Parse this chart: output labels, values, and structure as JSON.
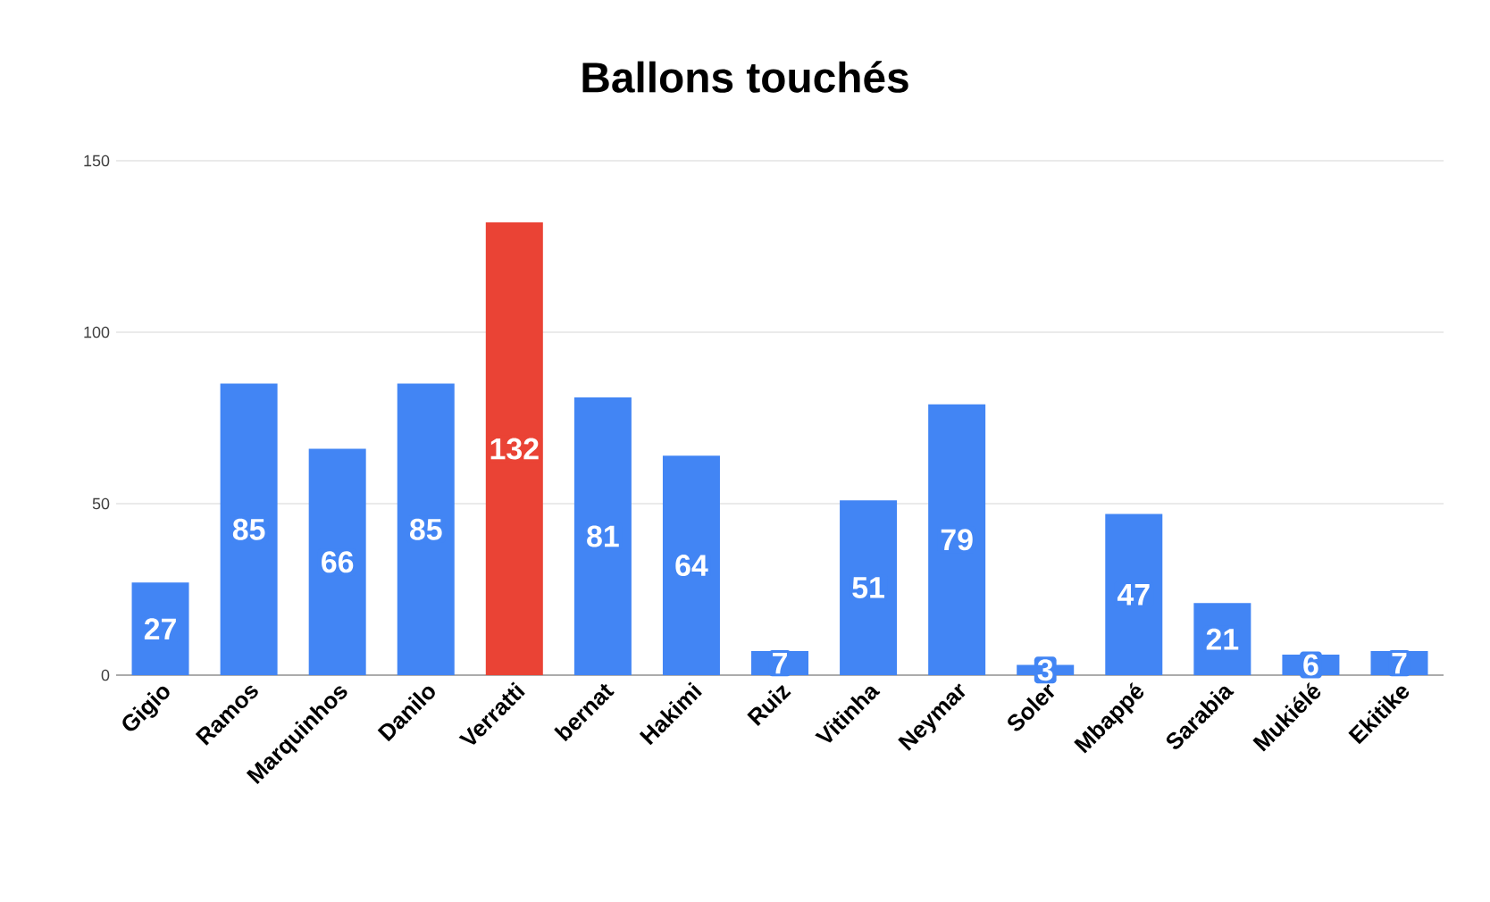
{
  "chart_data": {
    "type": "bar",
    "title": "Ballons touchés",
    "categories": [
      "Gigio",
      "Ramos",
      "Marquinhos",
      "Danilo",
      "Verratti",
      "bernat",
      "Hakimi",
      "Ruiz",
      "Vitinha",
      "Neymar",
      "Soler",
      "Mbappé",
      "Sarabia",
      "Mukiélé",
      "Ekitike"
    ],
    "values": [
      27,
      85,
      66,
      85,
      132,
      81,
      64,
      7,
      51,
      79,
      3,
      47,
      21,
      6,
      7
    ],
    "colors": [
      "#4285f4",
      "#4285f4",
      "#4285f4",
      "#4285f4",
      "#ea4335",
      "#4285f4",
      "#4285f4",
      "#4285f4",
      "#4285f4",
      "#4285f4",
      "#4285f4",
      "#4285f4",
      "#4285f4",
      "#4285f4",
      "#4285f4"
    ],
    "ylim": [
      0,
      150
    ],
    "yticks": [
      0,
      50,
      100,
      150
    ],
    "grid": "y",
    "data_labels": true
  }
}
